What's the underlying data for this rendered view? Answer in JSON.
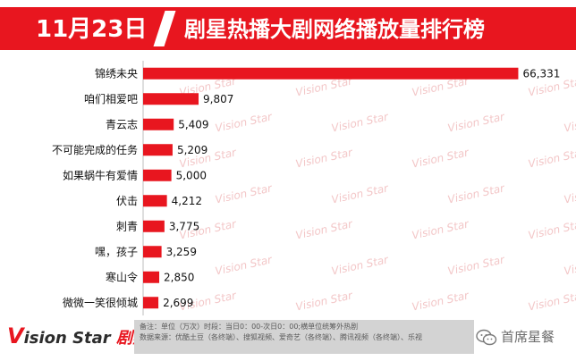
{
  "header": {
    "date": "11月23日",
    "title": "剧星热播大剧网络播放量排行榜"
  },
  "watermark_text": "Vision Star",
  "chart_data": {
    "type": "bar",
    "orientation": "horizontal",
    "categories": [
      "锦绣未央",
      "咱们相爱吧",
      "青云志",
      "不可能完成的任务",
      "如果蜗牛有爱情",
      "伏击",
      "刺青",
      "嘿，孩子",
      "寒山令",
      "微微一笑很倾城"
    ],
    "values": [
      66331,
      9807,
      5409,
      5209,
      5000,
      4212,
      3775,
      3259,
      2850,
      2699
    ],
    "value_labels": [
      "66,331",
      "9,807",
      "5,409",
      "5,209",
      "5,000",
      "4,212",
      "3,775",
      "3,259",
      "2,850",
      "2,699"
    ],
    "xlim": [
      0,
      68000
    ],
    "bar_color": "#e8161f",
    "grid": false
  },
  "footer": {
    "logo_v": "V",
    "logo_en": "ision Star",
    "logo_cn": "剧星传媒",
    "note_line1": "备注：单位（万次）时段：当日0：00-次日0：00;横单位统筹外热剧",
    "note_line2": "数据来源：优酷土豆（各终端）、搜狐视频、爱奇艺（各终端）、腾讯视频（各终端）、乐视",
    "wechat_label": "首席星餐",
    "wechat_icon": "wechat-icon"
  }
}
